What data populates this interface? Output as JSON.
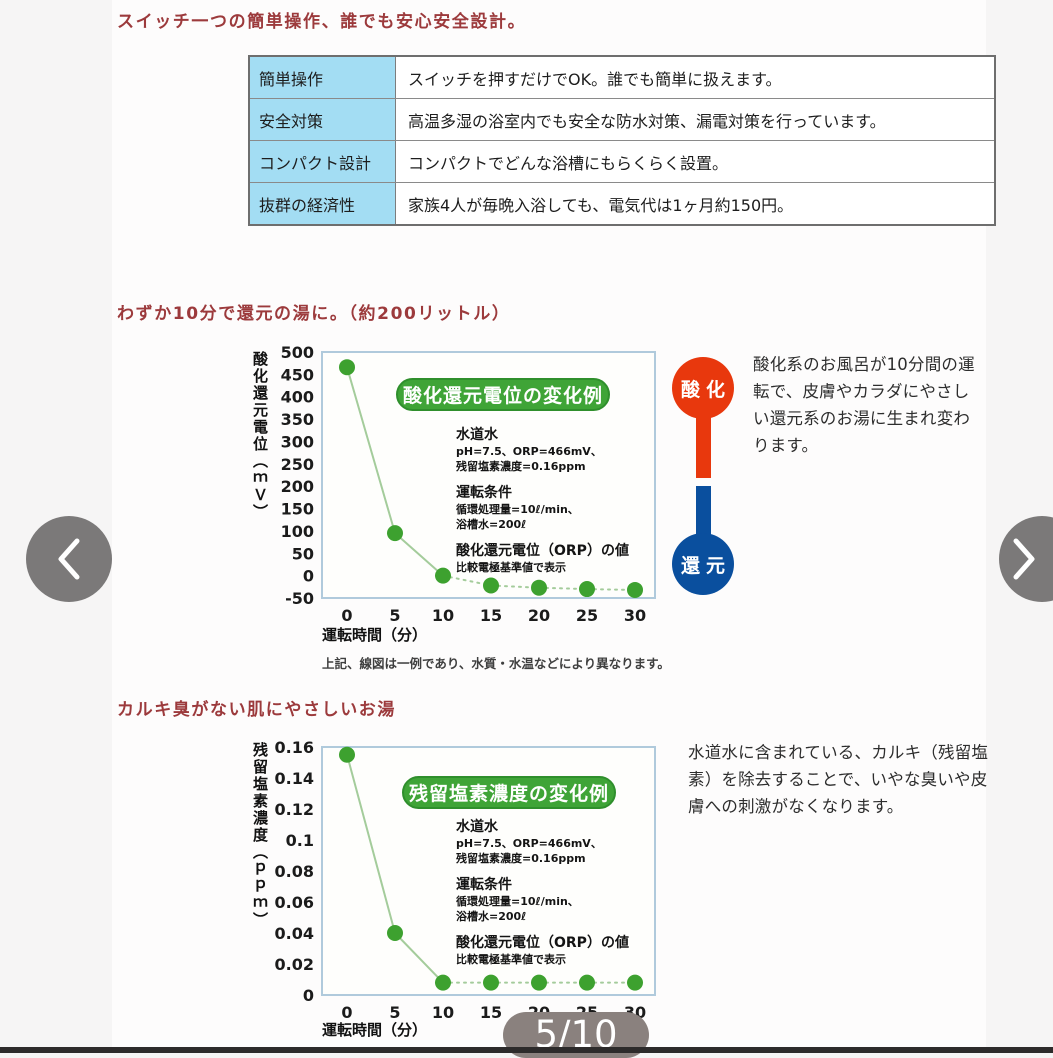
{
  "page": {
    "header_operation": "スイッチ一つの簡単操作、誰でも安心安全設計。",
    "header_reduction": "わずか10分で還元の湯に。（約200リットル）",
    "header_chlorine": "カルキ臭がない肌にやさしいお湯",
    "chart_note": "上記、線図は一例であり、水質・水温などにより異なります。",
    "pager": "5/10"
  },
  "table": {
    "rows": [
      {
        "label": "簡単操作",
        "value": "スイッチを押すだけでOK。誰でも簡単に扱えます。"
      },
      {
        "label": "安全対策",
        "value": "高温多湿の浴室内でも安全な防水対策、漏電対策を行っています。"
      },
      {
        "label": "コンパクト設計",
        "value": "コンパクトでどんな浴槽にもらくらく設置。"
      },
      {
        "label": "抜群の経済性",
        "value": "家族4人が毎晩入浴しても、電気代は1ヶ月約150円。"
      }
    ]
  },
  "orp_section": {
    "oxidation_label": "酸化",
    "reduction_label": "還元",
    "description": "酸化系のお風呂が10分間の運転で、皮膚やカラダにやさしい還元系のお湯に生まれ変わります。"
  },
  "chlorine_section": {
    "description": "水道水に含まれている、カルキ（残留塩素）を除去することで、いやな臭いや皮膚への刺激がなくなります。"
  },
  "chart_data": [
    {
      "type": "line",
      "title": "酸化還元電位の変化例",
      "x": [
        0,
        5,
        10,
        15,
        20,
        25,
        30
      ],
      "values": [
        466,
        95,
        0,
        -22,
        -27,
        -30,
        -32
      ],
      "xlabel": "運転時間（分）",
      "ylabel": "酸化還元電位（ｍＶ）",
      "ylim": [
        -50,
        500
      ],
      "yticks": [
        "500",
        "450",
        "400",
        "350",
        "300",
        "250",
        "200",
        "150",
        "100",
        "50",
        "0",
        "-50"
      ],
      "grid": false,
      "annotation": {
        "l1": "水道水",
        "l2": "pH=7.5、ORP=466mV、",
        "l3": "残留塩素濃度=0.16ppm",
        "l4": "運転条件",
        "l5": "循環処理量=10ℓ/min、",
        "l6": "浴槽水=200ℓ",
        "l7": "酸化還元電位（ORP）の値",
        "l8": "比較電極基準値で表示"
      }
    },
    {
      "type": "line",
      "title": "残留塩素濃度の変化例",
      "x": [
        0,
        5,
        10,
        15,
        20,
        25,
        30
      ],
      "values": [
        0.155,
        0.04,
        0.008,
        0.008,
        0.008,
        0.008,
        0.008
      ],
      "xlabel": "運転時間（分）",
      "ylabel": "残留塩素濃度（ｐｐｍ）",
      "ylim": [
        0,
        0.16
      ],
      "yticks": [
        "0.16",
        "0.14",
        "0.12",
        "0.1",
        "0.08",
        "0.06",
        "0.04",
        "0.02",
        "0"
      ],
      "grid": false,
      "annotation": {
        "l1": "水道水",
        "l2": "pH=7.5、ORP=466mV、",
        "l3": "残留塩素濃度=0.16ppm",
        "l4": "運転条件",
        "l5": "循環処理量=10ℓ/min、",
        "l6": "浴槽水=200ℓ",
        "l7": "酸化還元電位（ORP）の値",
        "l8": "比較電極基準値で表示"
      }
    }
  ],
  "icons": {
    "prev": "chevron-left",
    "next": "chevron-right"
  },
  "colors": {
    "header_text": "#9c3a3c",
    "table_label_bg": "#a3ddf3",
    "badge_green": "#3fa437",
    "line_green": "#a4cc9b",
    "point_green": "#3da12f",
    "oxidation_red": "#e8380d",
    "reduction_blue": "#0a4f9e",
    "chart_border": "#b0cadc",
    "nav_gray": "#7b7979"
  }
}
